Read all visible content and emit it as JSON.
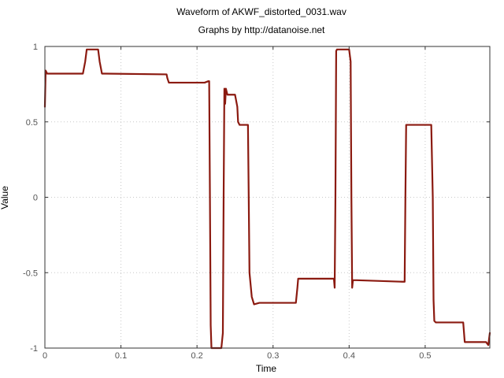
{
  "chart_data": {
    "type": "line",
    "title": "Waveform of AKWF_distorted_0031.wav",
    "subtitle": "Graphs by http://datanoise.net",
    "xlabel": "Time",
    "ylabel": "Value",
    "xlim": [
      0,
      0.585
    ],
    "ylim": [
      -1,
      1
    ],
    "xticks": [
      0,
      0.1,
      0.2,
      0.3,
      0.4,
      0.5
    ],
    "xtick_labels": [
      "0",
      "0.1",
      "0.2",
      "0.3",
      "0.4",
      "0.5"
    ],
    "yticks": [
      1,
      0.5,
      0,
      -0.5,
      -1
    ],
    "ytick_labels": [
      "1",
      "0.5",
      "0",
      "-0.5",
      "-1"
    ],
    "grid": true,
    "line_color": "#8b1a10",
    "series": [
      {
        "x": [
          0,
          0.001,
          0.003,
          0.01,
          0.05,
          0.053,
          0.055,
          0.058,
          0.07,
          0.072,
          0.075,
          0.08,
          0.16,
          0.161,
          0.163,
          0.167,
          0.21,
          0.215,
          0.216,
          0.217,
          0.218,
          0.219,
          0.22,
          0.222,
          0.232,
          0.234,
          0.235,
          0.236,
          0.237,
          0.238,
          0.24,
          0.245,
          0.25,
          0.253,
          0.254,
          0.256,
          0.265,
          0.267,
          0.268,
          0.269,
          0.272,
          0.275,
          0.282,
          0.33,
          0.332,
          0.333,
          0.336,
          0.37,
          0.38,
          0.381,
          0.382,
          0.383,
          0.384,
          0.385,
          0.387,
          0.4,
          0.402,
          0.403,
          0.404,
          0.405,
          0.407,
          0.41,
          0.47,
          0.473,
          0.474,
          0.475,
          0.476,
          0.478,
          0.48,
          0.508,
          0.51,
          0.511,
          0.512,
          0.514,
          0.52,
          0.55,
          0.552,
          0.555,
          0.58,
          0.583,
          0.585
        ],
        "y": [
          0.6,
          0.84,
          0.82,
          0.82,
          0.82,
          0.9,
          0.98,
          0.98,
          0.98,
          0.9,
          0.82,
          0.82,
          0.815,
          0.79,
          0.76,
          0.76,
          0.76,
          0.77,
          0.77,
          0.0,
          -0.85,
          -1.0,
          -1.0,
          -1.0,
          -1.0,
          -0.9,
          0.0,
          0.72,
          0.62,
          0.72,
          0.68,
          0.68,
          0.68,
          0.6,
          0.5,
          0.48,
          0.48,
          0.48,
          0.0,
          -0.5,
          -0.66,
          -0.71,
          -0.7,
          -0.7,
          -0.6,
          -0.54,
          -0.54,
          -0.54,
          -0.54,
          -0.6,
          0.0,
          0.97,
          0.98,
          0.98,
          0.98,
          0.98,
          0.9,
          0.0,
          -0.6,
          -0.55,
          -0.55,
          -0.55,
          -0.56,
          -0.56,
          0.0,
          0.48,
          0.48,
          0.48,
          0.48,
          0.48,
          0.0,
          -0.68,
          -0.82,
          -0.83,
          -0.83,
          -0.83,
          -0.96,
          -0.96,
          -0.96,
          -0.98,
          -0.9
        ]
      }
    ]
  }
}
